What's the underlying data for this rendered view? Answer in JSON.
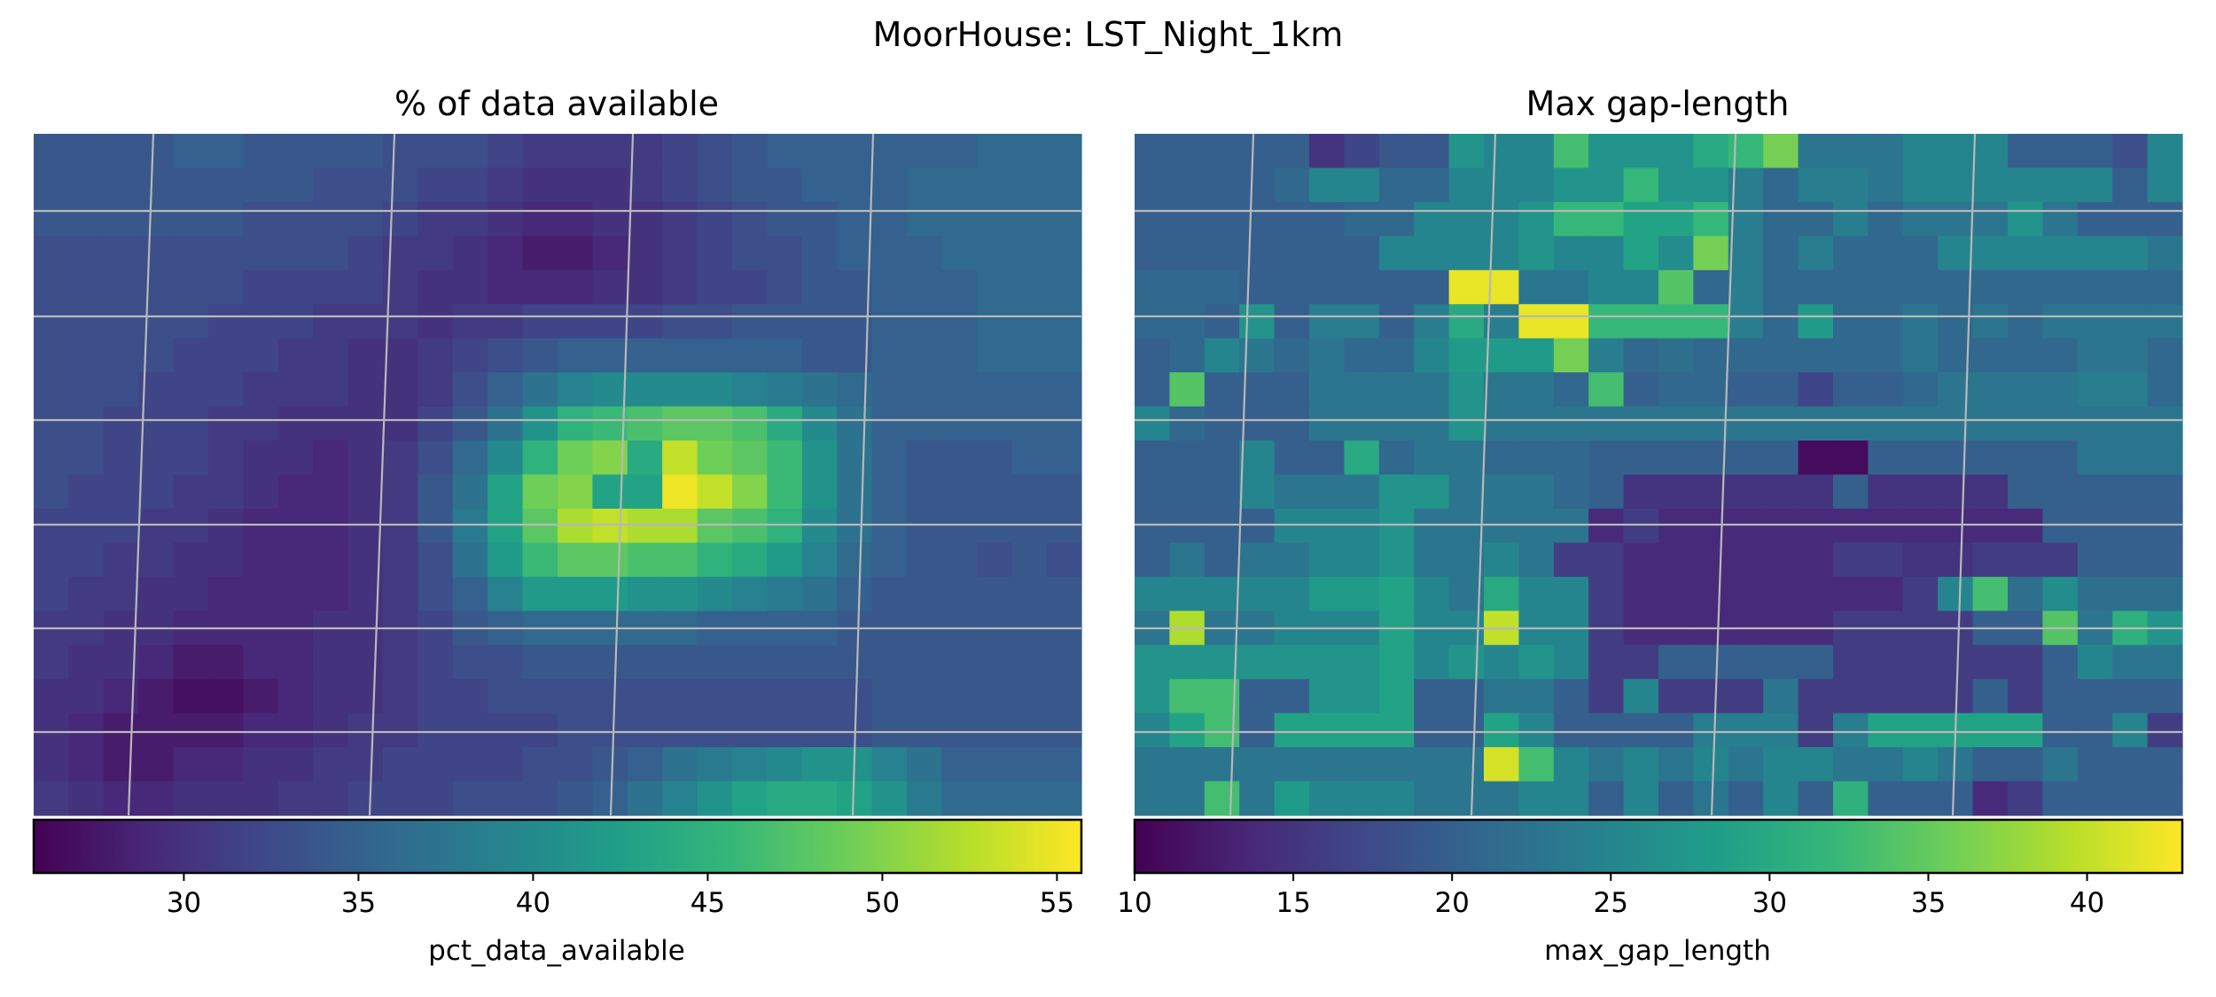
{
  "figure": {
    "suptitle": "MoorHouse: LST_Night_1km"
  },
  "chart_data": [
    {
      "type": "heatmap",
      "title": "% of data available",
      "colorbar_label": "pct_data_available",
      "colormap": "viridis",
      "vmin": 25.7,
      "vmax": 55.7,
      "colorbar_ticks": [
        30,
        35,
        40,
        45,
        50,
        55
      ],
      "gridlines": "on",
      "rows": 20,
      "cols": 30,
      "values": [
        [
          34,
          34,
          34,
          34,
          35,
          35,
          34,
          34,
          34,
          34,
          33,
          33,
          33,
          32,
          31,
          31,
          31,
          31,
          32,
          33,
          34,
          35,
          35,
          35,
          35,
          35,
          35,
          36,
          36,
          36
        ],
        [
          34,
          34,
          34,
          34,
          34,
          34,
          34,
          34,
          33,
          33,
          33,
          32,
          32,
          31,
          30,
          30,
          30,
          31,
          32,
          33,
          34,
          34,
          35,
          35,
          35,
          36,
          36,
          36,
          36,
          36
        ],
        [
          34,
          34,
          34,
          34,
          34,
          34,
          33,
          33,
          33,
          33,
          32,
          31,
          31,
          30,
          29,
          29,
          30,
          30,
          31,
          32,
          33,
          34,
          34,
          35,
          35,
          36,
          36,
          36,
          36,
          36
        ],
        [
          33,
          33,
          33,
          33,
          33,
          33,
          33,
          33,
          33,
          32,
          31,
          31,
          30,
          29,
          28,
          28,
          29,
          30,
          31,
          32,
          33,
          33,
          34,
          35,
          35,
          35,
          36,
          36,
          36,
          36
        ],
        [
          33,
          33,
          33,
          33,
          33,
          33,
          32,
          32,
          32,
          32,
          31,
          30,
          30,
          29,
          29,
          29,
          30,
          30,
          31,
          32,
          32,
          33,
          34,
          34,
          35,
          35,
          35,
          36,
          36,
          36
        ],
        [
          33,
          33,
          33,
          33,
          33,
          32,
          32,
          32,
          31,
          31,
          31,
          30,
          31,
          31,
          32,
          32,
          32,
          32,
          33,
          33,
          34,
          34,
          34,
          34,
          35,
          35,
          35,
          36,
          36,
          36
        ],
        [
          33,
          33,
          33,
          33,
          32,
          32,
          32,
          31,
          31,
          30,
          30,
          31,
          32,
          33,
          34,
          35,
          35,
          35,
          35,
          35,
          35,
          35,
          34,
          34,
          35,
          35,
          35,
          36,
          36,
          36
        ],
        [
          33,
          33,
          33,
          32,
          32,
          32,
          31,
          31,
          31,
          30,
          30,
          31,
          33,
          35,
          37,
          39,
          40,
          40,
          40,
          40,
          39,
          38,
          37,
          36,
          35,
          35,
          35,
          35,
          35,
          35
        ],
        [
          33,
          33,
          32,
          32,
          32,
          31,
          31,
          30,
          30,
          30,
          30,
          32,
          34,
          37,
          41,
          45,
          46,
          47,
          48,
          48,
          47,
          44,
          40,
          37,
          35,
          35,
          35,
          35,
          35,
          35
        ],
        [
          33,
          33,
          32,
          32,
          32,
          31,
          30,
          30,
          29,
          30,
          31,
          33,
          36,
          40,
          45,
          49,
          50,
          44,
          53,
          49,
          48,
          46,
          41,
          37,
          35,
          34,
          34,
          34,
          35,
          35
        ],
        [
          33,
          32,
          32,
          32,
          31,
          31,
          30,
          29,
          29,
          30,
          31,
          34,
          37,
          43,
          49,
          50,
          43,
          43,
          55,
          53,
          50,
          46,
          41,
          37,
          35,
          34,
          34,
          34,
          34,
          34
        ],
        [
          32,
          32,
          32,
          31,
          31,
          30,
          29,
          29,
          29,
          30,
          31,
          34,
          38,
          43,
          48,
          52,
          53,
          52,
          52,
          48,
          47,
          45,
          40,
          37,
          35,
          34,
          34,
          34,
          34,
          34
        ],
        [
          32,
          32,
          31,
          31,
          30,
          30,
          29,
          29,
          29,
          30,
          31,
          33,
          37,
          42,
          46,
          48,
          48,
          47,
          47,
          45,
          44,
          42,
          39,
          36,
          35,
          34,
          34,
          33,
          34,
          33
        ],
        [
          32,
          31,
          31,
          30,
          30,
          29,
          29,
          29,
          29,
          30,
          31,
          33,
          35,
          39,
          42,
          42,
          42,
          41,
          41,
          40,
          39,
          38,
          37,
          35,
          34,
          34,
          34,
          34,
          34,
          34
        ],
        [
          31,
          31,
          30,
          30,
          29,
          29,
          29,
          29,
          30,
          30,
          31,
          32,
          34,
          35,
          36,
          36,
          36,
          36,
          36,
          35,
          35,
          35,
          35,
          34,
          34,
          34,
          34,
          34,
          34,
          34
        ],
        [
          31,
          30,
          30,
          29,
          28,
          28,
          29,
          29,
          30,
          30,
          31,
          32,
          33,
          33,
          34,
          34,
          34,
          34,
          34,
          34,
          34,
          34,
          34,
          34,
          34,
          34,
          34,
          34,
          34,
          34
        ],
        [
          30,
          30,
          29,
          28,
          27,
          27,
          28,
          29,
          30,
          30,
          31,
          32,
          32,
          33,
          33,
          33,
          33,
          33,
          33,
          33,
          33,
          33,
          33,
          33,
          34,
          34,
          34,
          34,
          34,
          34
        ],
        [
          30,
          29,
          28,
          28,
          28,
          28,
          29,
          29,
          30,
          31,
          31,
          32,
          32,
          32,
          32,
          33,
          33,
          33,
          33,
          33,
          33,
          33,
          33,
          33,
          34,
          34,
          34,
          34,
          34,
          34
        ],
        [
          30,
          29,
          28,
          28,
          29,
          29,
          30,
          30,
          31,
          31,
          32,
          32,
          32,
          32,
          33,
          33,
          34,
          35,
          37,
          38,
          39,
          40,
          41,
          41,
          39,
          37,
          35,
          35,
          35,
          35
        ],
        [
          31,
          30,
          29,
          29,
          30,
          30,
          30,
          31,
          31,
          32,
          32,
          32,
          33,
          33,
          33,
          34,
          35,
          37,
          39,
          41,
          43,
          44,
          44,
          43,
          41,
          38,
          36,
          36,
          36,
          36
        ]
      ]
    },
    {
      "type": "heatmap",
      "title": "Max gap-length",
      "colorbar_label": "max_gap_length",
      "colormap": "viridis",
      "vmin": 10,
      "vmax": 43,
      "colorbar_ticks": [
        10,
        15,
        20,
        25,
        30,
        35,
        40
      ],
      "gridlines": "on",
      "rows": 20,
      "cols": 30,
      "values": [
        [
          20,
          20,
          20,
          20,
          20,
          15,
          17,
          19,
          19,
          27,
          25,
          25,
          33,
          27,
          27,
          27,
          30,
          32,
          36,
          23,
          23,
          23,
          25,
          25,
          25,
          20,
          20,
          20,
          18,
          25
        ],
        [
          20,
          20,
          20,
          20,
          21,
          25,
          25,
          21,
          21,
          25,
          25,
          25,
          27,
          27,
          32,
          27,
          27,
          24,
          21,
          24,
          24,
          23,
          25,
          25,
          25,
          25,
          25,
          25,
          20,
          25
        ],
        [
          20,
          20,
          20,
          20,
          20,
          20,
          21,
          21,
          25,
          25,
          25,
          27,
          32,
          32,
          29,
          29,
          32,
          24,
          21,
          21,
          24,
          21,
          23,
          23,
          23,
          27,
          23,
          20,
          20,
          20
        ],
        [
          20,
          20,
          20,
          20,
          20,
          20,
          20,
          25,
          25,
          25,
          25,
          27,
          25,
          25,
          29,
          26,
          36,
          24,
          21,
          24,
          21,
          21,
          21,
          25,
          25,
          25,
          25,
          25,
          25,
          23
        ],
        [
          21,
          21,
          21,
          20,
          20,
          20,
          20,
          20,
          20,
          42,
          42,
          23,
          23,
          25,
          25,
          34,
          21,
          24,
          21,
          21,
          21,
          21,
          21,
          21,
          21,
          21,
          21,
          21,
          21,
          21
        ],
        [
          21,
          21,
          20,
          27,
          20,
          24,
          24,
          20,
          24,
          30,
          24,
          42,
          42,
          32,
          32,
          32,
          32,
          24,
          21,
          28,
          21,
          21,
          23,
          21,
          23,
          21,
          23,
          23,
          23,
          23
        ],
        [
          20,
          21,
          25,
          23,
          21,
          23,
          21,
          21,
          25,
          28,
          28,
          28,
          36,
          24,
          21,
          22,
          21,
          21,
          21,
          21,
          21,
          21,
          23,
          21,
          21,
          21,
          21,
          23,
          23,
          21
        ],
        [
          20,
          34,
          20,
          20,
          20,
          23,
          23,
          23,
          23,
          27,
          23,
          23,
          21,
          33,
          20,
          21,
          21,
          20,
          20,
          17,
          20,
          20,
          21,
          23,
          23,
          23,
          23,
          24,
          24,
          21
        ],
        [
          25,
          21,
          20,
          20,
          20,
          23,
          23,
          23,
          23,
          27,
          23,
          23,
          23,
          23,
          23,
          23,
          23,
          23,
          23,
          23,
          23,
          23,
          23,
          23,
          23,
          23,
          23,
          23,
          23,
          23
        ],
        [
          20,
          20,
          20,
          25,
          20,
          20,
          30,
          21,
          23,
          23,
          21,
          21,
          21,
          20,
          20,
          20,
          20,
          20,
          20,
          11,
          11,
          20,
          20,
          20,
          20,
          20,
          20,
          23,
          23,
          23
        ],
        [
          20,
          20,
          20,
          25,
          23,
          23,
          23,
          27,
          27,
          23,
          23,
          23,
          21,
          20,
          15,
          15,
          15,
          15,
          15,
          15,
          20,
          15,
          15,
          15,
          15,
          20,
          20,
          20,
          20,
          20
        ],
        [
          20,
          20,
          20,
          20,
          25,
          25,
          25,
          27,
          23,
          23,
          23,
          23,
          23,
          14,
          16,
          14,
          14,
          14,
          14,
          14,
          14,
          14,
          14,
          14,
          14,
          14,
          20,
          20,
          20,
          20
        ],
        [
          20,
          23,
          20,
          23,
          23,
          25,
          25,
          27,
          23,
          23,
          25,
          23,
          16,
          16,
          14,
          14,
          14,
          14,
          14,
          14,
          16,
          16,
          15,
          15,
          16,
          16,
          16,
          20,
          20,
          20
        ],
        [
          25,
          25,
          25,
          25,
          25,
          28,
          28,
          29,
          25,
          23,
          30,
          25,
          25,
          16,
          14,
          14,
          14,
          14,
          14,
          14,
          14,
          14,
          16,
          25,
          33,
          22,
          26,
          22,
          22,
          22
        ],
        [
          23,
          39,
          23,
          23,
          25,
          25,
          25,
          29,
          25,
          25,
          40,
          25,
          25,
          16,
          14,
          14,
          14,
          14,
          14,
          14,
          16,
          16,
          16,
          16,
          20,
          20,
          34,
          23,
          31,
          27
        ],
        [
          27,
          27,
          27,
          27,
          27,
          27,
          27,
          29,
          25,
          27,
          25,
          27,
          25,
          16,
          16,
          20,
          20,
          20,
          20,
          20,
          16,
          16,
          16,
          16,
          16,
          16,
          20,
          25,
          23,
          23
        ],
        [
          27,
          33,
          33,
          20,
          20,
          27,
          27,
          29,
          20,
          20,
          23,
          23,
          20,
          16,
          25,
          16,
          16,
          16,
          23,
          16,
          16,
          16,
          16,
          16,
          20,
          16,
          20,
          20,
          20,
          20
        ],
        [
          25,
          29,
          33,
          20,
          29,
          29,
          29,
          29,
          20,
          20,
          29,
          25,
          20,
          20,
          20,
          20,
          24,
          24,
          24,
          16,
          24,
          29,
          29,
          29,
          29,
          29,
          20,
          20,
          25,
          16
        ],
        [
          23,
          23,
          23,
          23,
          23,
          23,
          23,
          23,
          23,
          23,
          41,
          33,
          25,
          23,
          25,
          23,
          25,
          23,
          25,
          25,
          23,
          23,
          25,
          23,
          20,
          20,
          23,
          20,
          20,
          20
        ],
        [
          23,
          23,
          33,
          23,
          28,
          25,
          25,
          25,
          23,
          23,
          23,
          25,
          25,
          20,
          25,
          20,
          23,
          20,
          25,
          20,
          31,
          20,
          20,
          20,
          14,
          16,
          20,
          20,
          20,
          20
        ]
      ]
    }
  ]
}
